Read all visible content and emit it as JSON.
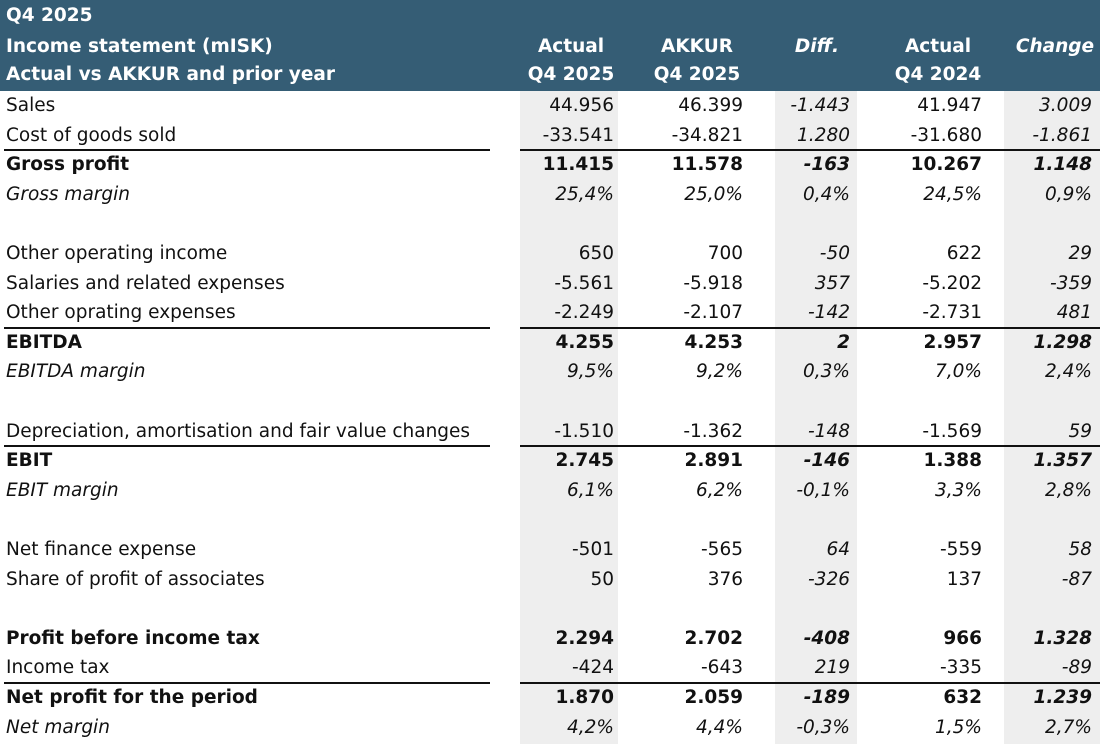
{
  "header": {
    "period": "Q4 2025",
    "title": "Income statement (mISK)",
    "subtitle": "Actual vs AKKUR and prior year",
    "columns": [
      {
        "top": "Actual",
        "bottom": "Q4 2025"
      },
      {
        "top": "AKKUR",
        "bottom": "Q4 2025"
      },
      {
        "top": "Diff.",
        "bottom": ""
      },
      {
        "top": "Actual",
        "bottom": "Q4 2024"
      },
      {
        "top": "Change",
        "bottom": ""
      }
    ]
  },
  "rows": [
    {
      "label": "Sales",
      "values": [
        "44.956",
        "46.399",
        "-1.443",
        "41.947",
        "3.009"
      ],
      "style": ""
    },
    {
      "label": "Cost of goods sold",
      "values": [
        "-33.541",
        "-34.821",
        "1.280",
        "-31.680",
        "-1.861"
      ],
      "style": ""
    },
    {
      "label": "Gross profit",
      "values": [
        "11.415",
        "11.578",
        "-163",
        "10.267",
        "1.148"
      ],
      "style": "bold"
    },
    {
      "label": "Gross margin",
      "values": [
        "25,4%",
        "25,0%",
        "0,4%",
        "24,5%",
        "0,9%"
      ],
      "style": "ital"
    },
    {
      "label": "",
      "values": [
        "",
        "",
        "",
        "",
        ""
      ],
      "style": ""
    },
    {
      "label": "Other operating income",
      "values": [
        "650",
        "700",
        "-50",
        "622",
        "29"
      ],
      "style": ""
    },
    {
      "label": "Salaries and related expenses",
      "values": [
        "-5.561",
        "-5.918",
        "357",
        "-5.202",
        "-359"
      ],
      "style": ""
    },
    {
      "label": "Other oprating expenses",
      "values": [
        "-2.249",
        "-2.107",
        "-142",
        "-2.731",
        "481"
      ],
      "style": ""
    },
    {
      "label": "EBITDA",
      "values": [
        "4.255",
        "4.253",
        "2",
        "2.957",
        "1.298"
      ],
      "style": "bold"
    },
    {
      "label": "EBITDA margin",
      "values": [
        "9,5%",
        "9,2%",
        "0,3%",
        "7,0%",
        "2,4%"
      ],
      "style": "ital"
    },
    {
      "label": "",
      "values": [
        "",
        "",
        "",
        "",
        ""
      ],
      "style": ""
    },
    {
      "label": "Depreciation, amortisation and fair value changes",
      "values": [
        "-1.510",
        "-1.362",
        "-148",
        "-1.569",
        "59"
      ],
      "style": ""
    },
    {
      "label": "EBIT",
      "values": [
        "2.745",
        "2.891",
        "-146",
        "1.388",
        "1.357"
      ],
      "style": "bold"
    },
    {
      "label": "EBIT margin",
      "values": [
        "6,1%",
        "6,2%",
        "-0,1%",
        "3,3%",
        "2,8%"
      ],
      "style": "ital"
    },
    {
      "label": "",
      "values": [
        "",
        "",
        "",
        "",
        ""
      ],
      "style": ""
    },
    {
      "label": "Net finance expense",
      "values": [
        "-501",
        "-565",
        "64",
        "-559",
        "58"
      ],
      "style": ""
    },
    {
      "label": "Share of profit of associates",
      "values": [
        "50",
        "376",
        "-326",
        "137",
        "-87"
      ],
      "style": ""
    },
    {
      "label": "",
      "values": [
        "",
        "",
        "",
        "",
        ""
      ],
      "style": ""
    },
    {
      "label": "Profit before income tax",
      "values": [
        "2.294",
        "2.702",
        "-408",
        "966",
        "1.328"
      ],
      "style": "bold"
    },
    {
      "label": "Income tax",
      "values": [
        "-424",
        "-643",
        "219",
        "-335",
        "-89"
      ],
      "style": ""
    },
    {
      "label": "Net profit for the period",
      "values": [
        "1.870",
        "2.059",
        "-189",
        "632",
        "1.239"
      ],
      "style": "bold"
    },
    {
      "label": "Net margin",
      "values": [
        "4,2%",
        "4,4%",
        "-0,3%",
        "1,5%",
        "2,7%"
      ],
      "style": "ital"
    }
  ],
  "colors": {
    "header_bg": "#355d75",
    "header_text": "#ffffff",
    "column_shade": "#eeeeee"
  }
}
